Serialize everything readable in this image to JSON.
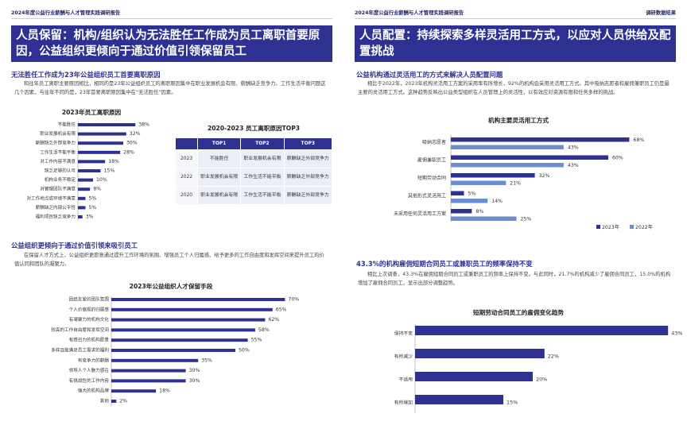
{
  "left": {
    "header": "2024年度公益行业薪酬与人才管理实践调研报告",
    "banner": "人员保留：机构/组织认为无法胜任工作成为员工离职首要原因，公益组织更倾向于通过价值引领保留员工",
    "section1_title": "无法胜任工作成为23年公益组织员工首要离职原因",
    "section1_text": "和往年员工离职主要原因相比，相同的是23年公益组织员工的离职原因集中在职业发展机会有限、薪酬缺乏竞争力、工作生活平衡问题这几个因素，与往年不同的是，23年首要离职原因集中在“无法胜任”因素。",
    "chart1": {
      "title": "2023年员工离职原因",
      "color": "#2e3192",
      "categories": [
        "不能胜任",
        "职业发展机会有限",
        "薪酬缺乏外部竞争力",
        "工作生活不能平衡",
        "对工作内容不满意",
        "缺乏足够的认可",
        "机构业务不稳定",
        "对管理团队不满意",
        "对工作地点或环境不满意",
        "薪酬缺乏内部公平性",
        "福利项目缺乏竞争力"
      ],
      "values": [
        38,
        32,
        30,
        28,
        18,
        15,
        10,
        8,
        5,
        5,
        3
      ],
      "labels": [
        "38%",
        "32%",
        "30%",
        "28%",
        "18%",
        "15%",
        "10%",
        "8%",
        "5%",
        "5%",
        "3%"
      ]
    },
    "table": {
      "title": "2020-2023 员工离职原因TOP3",
      "headers": [
        "",
        "TOP1",
        "TOP2",
        "TOP3"
      ],
      "rows": [
        [
          "2023",
          "不能胜任",
          "职业发展机会有限",
          "薪酬缺乏外部竞争力"
        ],
        [
          "2022",
          "职业发展机会有限",
          "工作生活不能平衡",
          "薪酬缺乏外部竞争力"
        ],
        [
          "2020",
          "职业发展机会有限",
          "工作生活不能平衡",
          "薪酬缺乏外部竞争力"
        ]
      ]
    },
    "section2_title": "公益组织更倾向于通过价值引领来吸引员工",
    "section2_text": "在保留人才方式上，公益组织更愿意通过提升工作环境的氛围、增强员工个人归属感、给予更多的工作自由度和发挥空间来提升员工的价值认同和团队的凝聚力。",
    "chart2": {
      "title": "2023年公益组织人才保留手段",
      "color": "#2e3192",
      "categories": [
        "团结友爱的团队氛围",
        "个人价值观的归属感",
        "有凝聚力的机构文化",
        "较高的工作自由度和发挥空间",
        "有感召力的机构愿景",
        "多样且能满足员工需求的福利",
        "有竞争力的薪酬",
        "领导人个人魅力感召",
        "有挑战性的工作内容",
        "强大的机构品牌",
        "其他"
      ],
      "values": [
        70,
        65,
        62,
        58,
        55,
        50,
        35,
        30,
        30,
        18,
        2
      ],
      "labels": [
        "70%",
        "65%",
        "62%",
        "58%",
        "55%",
        "50%",
        "35%",
        "30%",
        "30%",
        "18%",
        "2%"
      ]
    }
  },
  "right": {
    "header": "调研数据结果",
    "banner": "人员配置：持续探索多样灵活用工方式，以应对人员供给及配置挑战",
    "section1_title": "公益机构通过灵活用工的方式来解决人员配置问题",
    "section1_text": "相比于2022年，2023年机构灵活用工方案的采用率有所增长，92%的机构会采用灵活用工方式。其中吸纳志愿者和雇佣兼职员工仍是最主要的灵活用工方式。这种趋势反映出公益类型组织在人员管理上的灵活性，以有效应对资源有限和任务多样的挑战。",
    "chart3": {
      "title": "机构主要灵活用工方式",
      "categories": [
        "吸纳志愿者",
        "雇佣兼职员工",
        "短期劳动合同",
        "其他形式灵活用工",
        "未采用任何灵活用工方案"
      ],
      "series": [
        {
          "name": "2023年",
          "color": "#2e3192",
          "values": [
            68,
            60,
            32,
            5,
            8
          ],
          "labels": [
            "68%",
            "60%",
            "32%",
            "5%",
            "8%"
          ]
        },
        {
          "name": "2022年",
          "color": "#6a8fd0",
          "values": [
            43,
            43,
            21,
            14,
            25
          ],
          "labels": [
            "43%",
            "43%",
            "21%",
            "14%",
            "25%"
          ]
        }
      ]
    },
    "section2_title": "43.3%的机构雇佣短期合同员工或兼职员工的频率保持不变",
    "section2_text": "相比上次调查，43.3%在雇佣短期合同员工或兼职员工的频率上保持不变。与此同时，21.7%的机构减少了雇佣合同员工，15.0%的机构增加了雇佣合同员工，显示出部分调整趋势。",
    "chart4": {
      "title": "短期劳动合同员工的雇佣变化趋势",
      "color": "#2e3192",
      "categories": [
        "保持不变",
        "有所减少",
        "不适用",
        "有所增加"
      ],
      "values": [
        43,
        22,
        20,
        15
      ],
      "labels": [
        "43%",
        "22%",
        "20%",
        "15%"
      ]
    }
  }
}
